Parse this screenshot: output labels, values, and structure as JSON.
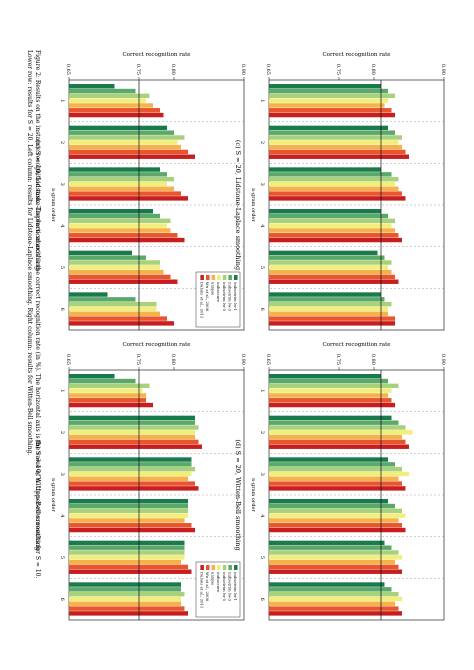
{
  "caption": {
    "line1": "Figure 2: Results on the instance recognition task. The vertical axis is the correct recognition rate (in %). The horizontal axis is the value of n. Upper-row: results for S = 10.",
    "line2": "Lower row: results for S = 20. Left column: results for Lidstone-Laplace smoothing. Right column: results for Witten-Bell smoothing."
  },
  "legend_entries": [
    "indisetrim lw-1",
    "indisetrim lw-3",
    "indisetrim lw-5",
    "indisecure",
    "unique",
    "Wu et al., 2008",
    "Dubois et al., 2011"
  ],
  "colors": {
    "series": [
      "#1a7a4c",
      "#5aa86a",
      "#a7d17a",
      "#f1ee7c",
      "#f5b24a",
      "#e8552e",
      "#c81e1e"
    ],
    "hline": "#111111",
    "grid": "#888888"
  },
  "chart_data": [
    {
      "type": "bar",
      "caption": "(a) S = 10, Lidstone-Laplace smoothing",
      "ylabel": "Correct recognition rate",
      "xlabel": "n-gram order",
      "categories": [
        "1",
        "2",
        "3",
        "4",
        "5",
        "6"
      ],
      "yticks": [
        "0.65",
        "0.75",
        "0.80",
        "0.90"
      ],
      "ylim": [
        0.65,
        0.9
      ],
      "reference_line": 0.75,
      "series": [
        {
          "name": "indisetrim lw-1",
          "values": [
            0.715,
            0.79,
            0.78,
            0.77,
            0.74,
            0.705
          ]
        },
        {
          "name": "indisetrim lw-3",
          "values": [
            0.745,
            0.8,
            0.79,
            0.78,
            0.76,
            0.745
          ]
        },
        {
          "name": "indisetrim lw-5",
          "values": [
            0.765,
            0.815,
            0.8,
            0.795,
            0.78,
            0.775
          ]
        },
        {
          "name": "indisecure",
          "values": [
            0.76,
            0.805,
            0.79,
            0.79,
            0.78,
            0.775
          ]
        },
        {
          "name": "unique",
          "values": [
            0.77,
            0.81,
            0.8,
            0.795,
            0.785,
            0.78
          ]
        },
        {
          "name": "Wu et al., 2008",
          "values": [
            0.78,
            0.82,
            0.81,
            0.805,
            0.795,
            0.79
          ]
        },
        {
          "name": "Dubois et al., 2011",
          "values": [
            0.785,
            0.83,
            0.82,
            0.815,
            0.805,
            0.8
          ]
        }
      ]
    },
    {
      "type": "bar",
      "caption": "(b) S = 10, Witten-Bell smoothing",
      "ylabel": "Correct recognition rate",
      "xlabel": "n-gram order",
      "categories": [
        "1",
        "2",
        "3",
        "4",
        "5",
        "6"
      ],
      "yticks": [
        "0.65",
        "0.75",
        "0.80",
        "0.90"
      ],
      "ylim": [
        0.65,
        0.9
      ],
      "reference_line": 0.75,
      "series": [
        {
          "name": "indisetrim lw-1",
          "values": [
            0.715,
            0.83,
            0.825,
            0.82,
            0.815,
            0.81
          ]
        },
        {
          "name": "indisetrim lw-3",
          "values": [
            0.745,
            0.83,
            0.825,
            0.82,
            0.815,
            0.81
          ]
        },
        {
          "name": "indisetrim lw-5",
          "values": [
            0.765,
            0.835,
            0.83,
            0.82,
            0.815,
            0.815
          ]
        },
        {
          "name": "indisecure",
          "values": [
            0.755,
            0.83,
            0.825,
            0.82,
            0.815,
            0.81
          ]
        },
        {
          "name": "unique",
          "values": [
            0.76,
            0.83,
            0.82,
            0.815,
            0.81,
            0.81
          ]
        },
        {
          "name": "Wu et al., 2008",
          "values": [
            0.76,
            0.835,
            0.83,
            0.825,
            0.82,
            0.815
          ]
        },
        {
          "name": "Dubois et al., 2011",
          "values": [
            0.77,
            0.84,
            0.835,
            0.83,
            0.825,
            0.82
          ]
        }
      ]
    },
    {
      "type": "bar",
      "caption": "(c) S = 20, Lidstone-Laplace smoothing",
      "ylabel": "Correct recognition rate",
      "xlabel": "n-gram order",
      "categories": [
        "1",
        "2",
        "3",
        "4",
        "5",
        "6"
      ],
      "yticks": [
        "0.65",
        "0.75",
        "0.80",
        "0.90"
      ],
      "ylim": [
        0.65,
        0.9
      ],
      "reference_line": 0.81,
      "series": [
        {
          "name": "indisetrim lw-1",
          "values": [
            0.81,
            0.82,
            0.81,
            0.81,
            0.805,
            0.81
          ]
        },
        {
          "name": "indisetrim lw-3",
          "values": [
            0.82,
            0.83,
            0.825,
            0.82,
            0.815,
            0.815
          ]
        },
        {
          "name": "indisetrim lw-5",
          "values": [
            0.83,
            0.84,
            0.835,
            0.83,
            0.825,
            0.825
          ]
        },
        {
          "name": "indisecure",
          "values": [
            0.82,
            0.835,
            0.83,
            0.825,
            0.82,
            0.82
          ]
        },
        {
          "name": "unique",
          "values": [
            0.815,
            0.84,
            0.835,
            0.83,
            0.825,
            0.82
          ]
        },
        {
          "name": "Wu et al., 2008",
          "values": [
            0.825,
            0.845,
            0.84,
            0.835,
            0.83,
            0.83
          ]
        },
        {
          "name": "Dubois et al., 2011",
          "values": [
            0.83,
            0.85,
            0.845,
            0.84,
            0.835,
            0.83
          ]
        }
      ]
    },
    {
      "type": "bar",
      "caption": "(d) S = 20, Witten-Bell smoothing",
      "ylabel": "Correct recognition rate",
      "xlabel": "n-gram order",
      "categories": [
        "1",
        "2",
        "3",
        "4",
        "5",
        "6"
      ],
      "yticks": [
        "0.65",
        "0.75",
        "0.80",
        "0.90"
      ],
      "ylim": [
        0.65,
        0.9
      ],
      "reference_line": 0.81,
      "series": [
        {
          "name": "indisetrim lw-1",
          "values": [
            0.81,
            0.825,
            0.82,
            0.82,
            0.815,
            0.815
          ]
        },
        {
          "name": "indisetrim lw-3",
          "values": [
            0.82,
            0.835,
            0.83,
            0.83,
            0.825,
            0.825
          ]
        },
        {
          "name": "indisetrim lw-5",
          "values": [
            0.835,
            0.845,
            0.84,
            0.84,
            0.835,
            0.835
          ]
        },
        {
          "name": "indisecure",
          "values": [
            0.825,
            0.855,
            0.85,
            0.845,
            0.84,
            0.84
          ]
        },
        {
          "name": "unique",
          "values": [
            0.82,
            0.84,
            0.835,
            0.835,
            0.83,
            0.83
          ]
        },
        {
          "name": "Wu et al., 2008",
          "values": [
            0.825,
            0.845,
            0.84,
            0.84,
            0.835,
            0.835
          ]
        },
        {
          "name": "Dubois et al., 2011",
          "values": [
            0.83,
            0.85,
            0.845,
            0.845,
            0.84,
            0.84
          ]
        }
      ]
    }
  ]
}
